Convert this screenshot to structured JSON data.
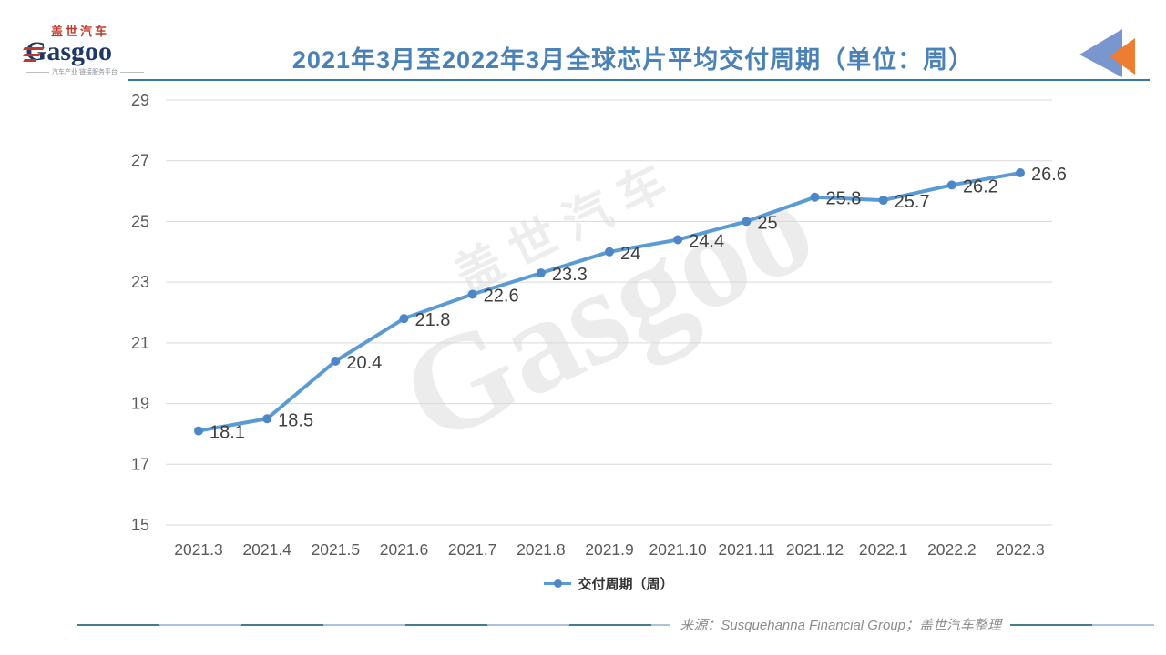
{
  "header": {
    "title": "2021年3月至2022年3月全球芯片平均交付周期（单位：周）",
    "logo": {
      "cn": "盖世汽车",
      "en": "Gasgoo",
      "tagline": "汽车产业 链接服务平台"
    }
  },
  "colors": {
    "title_blue": "#4a82b8",
    "line_blue": "#5b9bd5",
    "marker_blue": "#4d87c7",
    "gridline": "#d9d9d9",
    "axis_text": "#595959",
    "data_label": "#3f3f3f",
    "corner_triangle_blue": "#7a96cf",
    "corner_triangle_orange": "#ed7d31"
  },
  "chart_data": {
    "type": "line",
    "title": "2021年3月至2022年3月全球芯片平均交付周期（单位：周）",
    "categories": [
      "2021.3",
      "2021.4",
      "2021.5",
      "2021.6",
      "2021.7",
      "2021.8",
      "2021.9",
      "2021.10",
      "2021.11",
      "2021.12",
      "2022.1",
      "2022.2",
      "2022.3"
    ],
    "series": [
      {
        "name": "交付周期（周）",
        "values": [
          18.1,
          18.5,
          20.4,
          21.8,
          22.6,
          23.3,
          24,
          24.4,
          25,
          25.8,
          25.7,
          26.2,
          26.6
        ],
        "labels": [
          "18.1",
          "18.5",
          "20.4",
          "21.8",
          "22.6",
          "23.3",
          "24",
          "24.4",
          "25",
          "25.8",
          "25.7",
          "26.2",
          "26.6"
        ]
      }
    ],
    "xlabel": "",
    "ylabel": "",
    "ylim": [
      15,
      29
    ],
    "ytick_step": 2,
    "grid": true,
    "legend_position": "bottom"
  },
  "watermark": {
    "cn": "盖世汽车",
    "en": "Gasgoo"
  },
  "footer": {
    "source": "来源：Susquehanna Financial Group；盖世汽车整理"
  }
}
